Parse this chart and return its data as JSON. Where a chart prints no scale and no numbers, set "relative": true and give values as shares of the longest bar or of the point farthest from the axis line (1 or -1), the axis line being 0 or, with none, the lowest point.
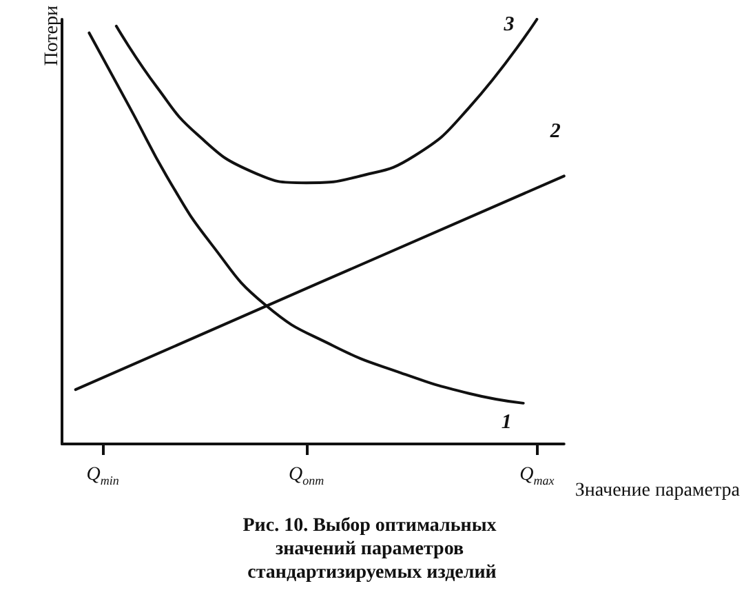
{
  "chart_data": {
    "type": "line",
    "relative": true,
    "title": "Рис. 10. Выбор оптимальных значений параметров стандартизируемых изделий",
    "xlabel": "Значение параметра",
    "ylabel": "Потери",
    "categories": [
      null,
      null,
      null,
      "Q$_{min}$",
      null,
      null,
      null,
      null,
      null,
      null,
      null,
      null,
      null,
      null,
      null,
      null,
      null,
      null,
      "Q$_{опт}$",
      null,
      null,
      null,
      null,
      null,
      null,
      null,
      null,
      null,
      null,
      null,
      null,
      null,
      null,
      null,
      null,
      "Q$_{max}$",
      null,
      null
    ],
    "grid": false,
    "legend": false,
    "marker": "none",
    "line_style": "solid",
    "series": [
      {
        "name": "1",
        "color": "#111111",
        "values": [
          null,
          null,
          0.968,
          null,
          null,
          0.792,
          null,
          null,
          0.615,
          null,
          null,
          0.471,
          null,
          null,
          null,
          0.327,
          null,
          null,
          null,
          null,
          0.231,
          null,
          null,
          null,
          null,
          0.167,
          null,
          null,
          null,
          null,
          0.119,
          null,
          null,
          null,
          0.096,
          null,
          null,
          null
        ]
      },
      {
        "name": "2",
        "color": "#111111",
        "values": [
          null,
          0.128,
          null,
          null,
          null,
          null,
          null,
          null,
          null,
          null,
          null,
          null,
          null,
          null,
          null,
          null,
          null,
          null,
          null,
          0.38,
          null,
          null,
          null,
          null,
          null,
          null,
          null,
          null,
          null,
          null,
          null,
          null,
          null,
          null,
          null,
          null,
          null,
          0.631
        ]
      },
      {
        "name": "3",
        "color": "#111111",
        "values": [
          null,
          null,
          null,
          null,
          0.984,
          null,
          null,
          0.84,
          null,
          null,
          0.728,
          null,
          null,
          null,
          0.641,
          null,
          null,
          null,
          0.615,
          null,
          null,
          null,
          0.631,
          null,
          null,
          null,
          0.679,
          null,
          null,
          null,
          0.792,
          null,
          null,
          null,
          null,
          1.0,
          null,
          null
        ]
      }
    ]
  }
}
